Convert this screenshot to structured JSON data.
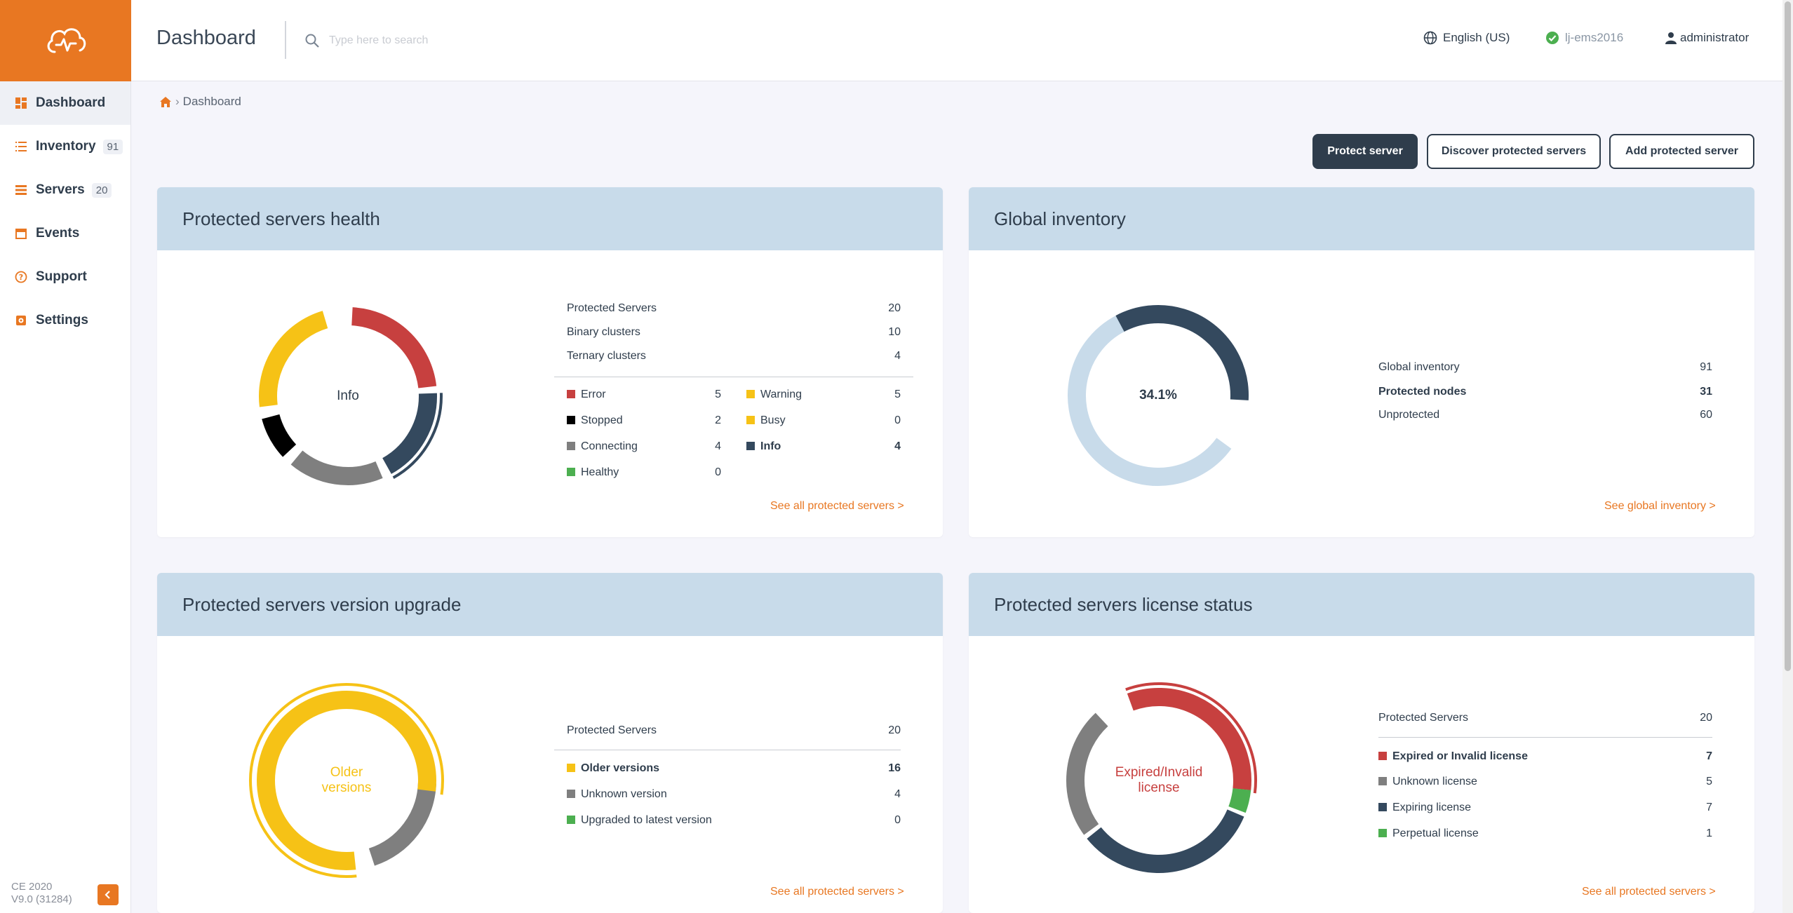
{
  "colors": {
    "brand": "#e87722",
    "navy": "#2f3d4c",
    "error": "#c7403f",
    "warning": "#f6c216",
    "stopped": "#000000",
    "connecting": "#7f7f7f",
    "healthy": "#4caf50",
    "info": "#34495e",
    "light_blue": "#c8dbea"
  },
  "sidebar": {
    "items": [
      {
        "label": "Dashboard",
        "icon": "dashboard-icon",
        "count": ""
      },
      {
        "label": "Inventory",
        "icon": "list-icon",
        "count": "91"
      },
      {
        "label": "Servers",
        "icon": "servers-icon",
        "count": "20"
      },
      {
        "label": "Events",
        "icon": "calendar-icon",
        "count": ""
      },
      {
        "label": "Support",
        "icon": "help-icon",
        "count": ""
      },
      {
        "label": "Settings",
        "icon": "gear-icon",
        "count": ""
      }
    ],
    "version_line1": "CE 2020",
    "version_line2": "V9.0 (31284)"
  },
  "header": {
    "title": "Dashboard",
    "search_placeholder": "Type here to search",
    "language": "English (US)",
    "server": "lj-ems2016",
    "user": "administrator"
  },
  "breadcrumb": {
    "current": "Dashboard"
  },
  "actions": {
    "protect": "Protect server",
    "discover": "Discover protected servers",
    "add": "Add protected server"
  },
  "health": {
    "title": "Protected servers health",
    "center_label": "Info",
    "summary": [
      {
        "label": "Protected Servers",
        "value": "20"
      },
      {
        "label": "Binary clusters",
        "value": "10"
      },
      {
        "label": "Ternary clusters",
        "value": "4"
      }
    ],
    "statuses_left": [
      {
        "label": "Error",
        "value": "5"
      },
      {
        "label": "Stopped",
        "value": "2"
      },
      {
        "label": "Connecting",
        "value": "4"
      },
      {
        "label": "Healthy",
        "value": "0"
      }
    ],
    "statuses_right": [
      {
        "label": "Warning",
        "value": "5"
      },
      {
        "label": "Busy",
        "value": "0"
      },
      {
        "label": "Info",
        "value": "4"
      }
    ],
    "link": "See all protected servers >"
  },
  "inventory": {
    "title": "Global inventory",
    "center_label": "34.1%",
    "rows": [
      {
        "label": "Global inventory",
        "value": "91"
      },
      {
        "label": "Protected nodes",
        "value": "31"
      },
      {
        "label": "Unprotected",
        "value": "60"
      }
    ],
    "link": "See global inventory >"
  },
  "upgrade": {
    "title": "Protected servers version upgrade",
    "center_label_1": "Older",
    "center_label_2": "versions",
    "summary": {
      "label": "Protected Servers",
      "value": "20"
    },
    "rows": [
      {
        "label": "Older versions",
        "value": "16"
      },
      {
        "label": "Unknown version",
        "value": "4"
      },
      {
        "label": "Upgraded to latest version",
        "value": "0"
      }
    ],
    "link": "See all protected servers >"
  },
  "license": {
    "title": "Protected servers license status",
    "center_label_1": "Expired/Invalid",
    "center_label_2": "license",
    "summary": {
      "label": "Protected Servers",
      "value": "20"
    },
    "rows": [
      {
        "label": "Expired or Invalid license",
        "value": "7"
      },
      {
        "label": "Unknown license",
        "value": "5"
      },
      {
        "label": "Expiring license",
        "value": "7"
      },
      {
        "label": "Perpetual license",
        "value": "1"
      }
    ],
    "link": "See all protected servers >"
  }
}
